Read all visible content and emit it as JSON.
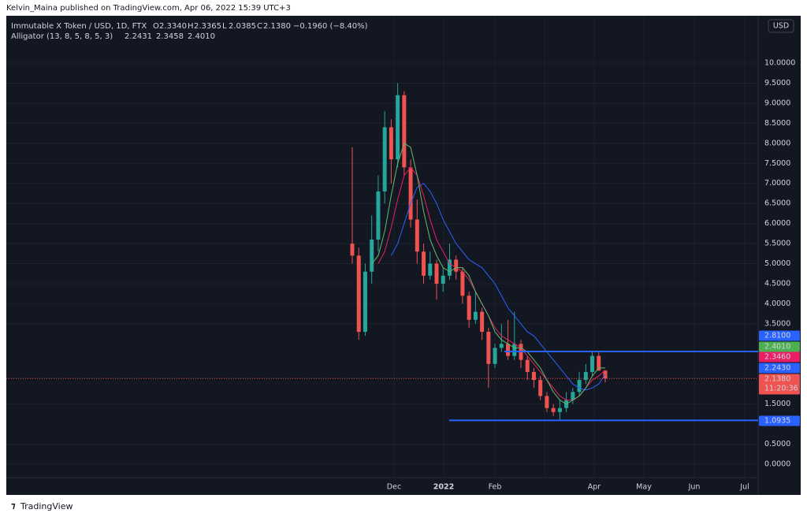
{
  "header": {
    "publisher": "Kelvin_Maina published on TradingView.com, Apr 06, 2022 15:39 UTC+3",
    "footer": "TradingView"
  },
  "chart_data": {
    "type": "candlestick",
    "title": "Immutable X Token / USD, 1D, FTX",
    "legend_ohlc": [
      {
        "key": "O",
        "value": "2.3340"
      },
      {
        "key": "H",
        "value": "2.3365"
      },
      {
        "key": "L",
        "value": "2.0385"
      },
      {
        "key": "C",
        "value": "2.1380"
      }
    ],
    "change": "−0.1960 (−8.40%)",
    "currency": "USD",
    "up_color": "#26a69a",
    "down_color": "#ef5350",
    "open": [
      5.5,
      5.2,
      3.3,
      4.8,
      5.6,
      6.8,
      8.4,
      7.6,
      9.2,
      7.4,
      6.1,
      5.3,
      4.7,
      5.0,
      4.5,
      4.7,
      5.1,
      4.8,
      4.2,
      3.6,
      3.8,
      3.3,
      2.5,
      2.9,
      3.0,
      2.7,
      3.0,
      2.6,
      2.3,
      2.1,
      1.7,
      1.4,
      1.3,
      1.4,
      1.6,
      1.8,
      2.1,
      2.3,
      2.7,
      2.334
    ],
    "high": [
      7.9,
      5.4,
      5.0,
      6.2,
      7.2,
      8.8,
      8.6,
      9.5,
      9.3,
      7.6,
      6.6,
      5.5,
      5.3,
      5.1,
      4.9,
      5.5,
      5.2,
      4.9,
      4.3,
      4.3,
      3.9,
      3.4,
      3.0,
      3.5,
      3.6,
      3.8,
      3.1,
      2.7,
      2.4,
      2.2,
      1.8,
      1.5,
      1.6,
      1.8,
      1.9,
      2.3,
      2.5,
      2.8,
      2.8,
      2.3365
    ],
    "low": [
      5.0,
      3.1,
      3.2,
      4.5,
      5.3,
      6.5,
      7.0,
      7.4,
      7.2,
      5.9,
      5.0,
      4.5,
      4.6,
      4.1,
      4.3,
      4.6,
      4.6,
      4.0,
      3.4,
      3.5,
      3.1,
      1.9,
      2.4,
      2.8,
      2.6,
      2.6,
      2.4,
      2.1,
      1.9,
      1.6,
      1.3,
      1.2,
      1.1,
      1.3,
      1.5,
      1.7,
      2.0,
      2.2,
      2.4,
      2.0385
    ],
    "close": [
      5.2,
      3.3,
      4.8,
      5.6,
      6.8,
      8.4,
      7.6,
      9.2,
      7.4,
      6.1,
      5.3,
      4.7,
      5.0,
      4.5,
      4.7,
      5.1,
      4.8,
      4.2,
      3.6,
      3.8,
      3.3,
      2.5,
      2.9,
      3.0,
      2.7,
      3.0,
      2.6,
      2.3,
      2.1,
      1.7,
      1.4,
      1.3,
      1.4,
      1.6,
      1.8,
      2.1,
      2.3,
      2.7,
      2.334,
      2.138
    ],
    "indicator": {
      "title": "Alligator (13, 8, 5, 8, 5, 3)",
      "series": [
        {
          "color": "#2962ff",
          "value_label": "2.2431",
          "values": [
            null,
            null,
            null,
            null,
            null,
            null,
            5.2,
            5.5,
            6.0,
            6.5,
            6.9,
            7.0,
            6.8,
            6.5,
            6.1,
            5.8,
            5.5,
            5.3,
            5.1,
            5.0,
            4.9,
            4.7,
            4.5,
            4.2,
            3.9,
            3.7,
            3.5,
            3.3,
            3.2,
            3.0,
            2.8,
            2.6,
            2.4,
            2.2,
            2.0,
            1.9,
            1.85,
            1.9,
            2.0,
            2.2431
          ]
        },
        {
          "color": "#e91e63",
          "value_label": "2.3458",
          "values": [
            null,
            null,
            null,
            null,
            5.0,
            5.3,
            5.9,
            6.6,
            7.2,
            7.4,
            7.2,
            6.7,
            6.1,
            5.6,
            5.3,
            5.0,
            4.9,
            4.8,
            4.6,
            4.3,
            4.0,
            3.7,
            3.4,
            3.2,
            3.1,
            3.0,
            2.9,
            2.7,
            2.5,
            2.3,
            2.1,
            1.9,
            1.7,
            1.6,
            1.6,
            1.7,
            1.9,
            2.1,
            2.2,
            2.3458
          ]
        },
        {
          "color": "#66bb6a",
          "value_label": "2.4010",
          "values": [
            null,
            null,
            null,
            5.0,
            5.2,
            5.8,
            6.7,
            7.5,
            8.0,
            7.9,
            7.2,
            6.3,
            5.6,
            5.2,
            4.9,
            4.8,
            4.9,
            4.9,
            4.7,
            4.3,
            4.0,
            3.7,
            3.3,
            3.1,
            3.0,
            2.9,
            2.9,
            2.8,
            2.6,
            2.4,
            2.1,
            1.8,
            1.6,
            1.5,
            1.6,
            1.7,
            1.9,
            2.2,
            2.4,
            2.401
          ]
        }
      ]
    },
    "levels": [
      {
        "value": 2.81,
        "label": "2.8100",
        "color": "#2962ff"
      },
      {
        "value": 1.0935,
        "label": "1.0935",
        "color": "#2962ff"
      }
    ],
    "axis_labels": [
      {
        "value": 2.401,
        "label": "2.4010",
        "color": "#4caf50"
      },
      {
        "value": 2.346,
        "label": "2.3460",
        "color": "#e91e63"
      },
      {
        "value": 2.243,
        "label": "2.2430",
        "color": "#2962ff"
      },
      {
        "value": 2.138,
        "label": "2.1380",
        "color": "#ef5350"
      }
    ],
    "countdown": "11:20:36",
    "xtick_labels": [
      "Dec",
      "2022",
      "Feb",
      "Apr",
      "May",
      "Jun",
      "Jul"
    ],
    "ylim": [
      -0.766,
      11.18
    ],
    "yticks": [
      {
        "value": 0,
        "label": "0.0000"
      },
      {
        "value": 0.5,
        "label": "0.5000"
      },
      {
        "value": 1.5,
        "label": "1.5000"
      },
      {
        "value": 3.5,
        "label": "3.5000"
      },
      {
        "value": 4,
        "label": "4.0000"
      },
      {
        "value": 4.5,
        "label": "4.5000"
      },
      {
        "value": 5,
        "label": "5.0000"
      },
      {
        "value": 5.5,
        "label": "5.5000"
      },
      {
        "value": 6,
        "label": "6.0000"
      },
      {
        "value": 6.5,
        "label": "6.5000"
      },
      {
        "value": 7,
        "label": "7.0000"
      },
      {
        "value": 7.5,
        "label": "7.5000"
      },
      {
        "value": 8,
        "label": "8.0000"
      },
      {
        "value": 8.5,
        "label": "8.5000"
      },
      {
        "value": 9,
        "label": "9.0000"
      },
      {
        "value": 9.5,
        "label": "9.5000"
      },
      {
        "value": 10,
        "label": "10.0000"
      }
    ],
    "grid": true
  }
}
